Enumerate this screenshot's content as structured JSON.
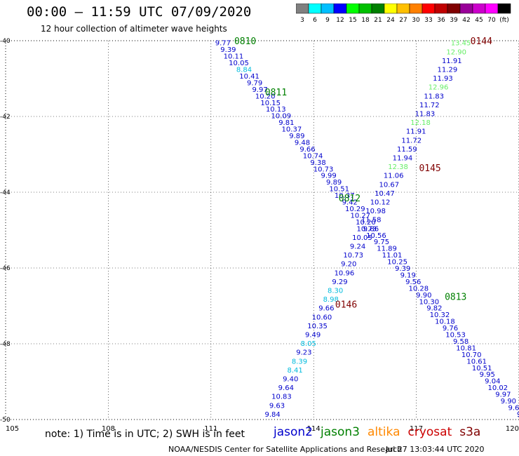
{
  "title": "00:00 – 11:59 UTC 07/09/2020",
  "subtitle": "12 hour collection of altimeter wave heights",
  "colorbar": {
    "colors": [
      "#808080",
      "#00ffff",
      "#00bfff",
      "#0000ff",
      "#00ff00",
      "#00c000",
      "#008000",
      "#ffff00",
      "#ffc000",
      "#ff8000",
      "#ff0000",
      "#c00000",
      "#800000",
      "#990099",
      "#cc00cc",
      "#ff00ff",
      "#000000"
    ],
    "labels": [
      "3",
      "6",
      "9",
      "12",
      "15",
      "18",
      "21",
      "24",
      "27",
      "30",
      "33",
      "36",
      "39",
      "42",
      "45",
      "70",
      "(ft)"
    ]
  },
  "note": "note: 1) Time is in UTC; 2) SWH is in feet",
  "satellites": [
    {
      "name": "jason2",
      "color": "#0000cc"
    },
    {
      "name": "jason3",
      "color": "#008000"
    },
    {
      "name": "altika",
      "color": "#ff8800"
    },
    {
      "name": "cryosat",
      "color": "#cc0000"
    },
    {
      "name": "s3a",
      "color": "#800000"
    }
  ],
  "footer_left": "NOAA/NESDIS Center for Satellite Applications and Research",
  "footer_right": "Jul 27 13:03:44 UTC 2020",
  "chart_data": {
    "type": "scatter",
    "title": "00:00 – 11:59 UTC 07/09/2020",
    "xlabel": "",
    "ylabel": "",
    "xlim": [
      105,
      120
    ],
    "ylim": [
      -50,
      -40
    ],
    "x_ticks": [
      "105",
      "108",
      "111",
      "114",
      "117",
      "120"
    ],
    "y_ticks": [
      "-40",
      "-42",
      "-44",
      "-46",
      "-48",
      "-50"
    ],
    "grid": true,
    "tracks": [
      {
        "id": "descending",
        "x_start": 111.35,
        "y_start": -40.05,
        "x_end": 120.0,
        "y_end": -49.85,
        "values": [
          "9.77",
          "9.39",
          "10.11",
          "10.05",
          "8.84",
          "10.41",
          "9.79",
          "9.97",
          "10.20",
          "10.15",
          "10.13",
          "10.09",
          "9.81",
          "10.37",
          "9.89",
          "9.48",
          "9.66",
          "10.74",
          "9.38",
          "10.73",
          "9.99",
          "9.89",
          "10.51",
          "10.37",
          "9.42",
          "10.29",
          "10.27",
          "10.20",
          "9.86",
          "10.56",
          "9.75",
          "11.89",
          "11.01",
          "10.25",
          "9.39",
          "9.19",
          "9.56",
          "10.28",
          "9.90",
          "10.30",
          "9.82",
          "10.32",
          "10.18",
          "9.76",
          "10.53",
          "9.58",
          "10.81",
          "10.70",
          "10.61",
          "10.51",
          "9.95",
          "9.04",
          "10.02",
          "9.97",
          "9.90",
          "9.6",
          "9"
        ]
      },
      {
        "id": "ascending",
        "x_start": 118.3,
        "y_start": -40.05,
        "x_end": 112.8,
        "y_end": -49.85,
        "values": [
          "13.45",
          "12.90",
          "11.91",
          "11.29",
          "11.93",
          "12.96",
          "11.83",
          "11.72",
          "11.83",
          "12.18",
          "11.91",
          "11.72",
          "11.59",
          "11.94",
          "12.38",
          "11.06",
          "10.67",
          "10.47",
          "10.12",
          "10.98",
          "11.58",
          "10.73",
          "10.05",
          "9.24",
          "10.73",
          "9.20",
          "10.96",
          "9.29",
          "8.30",
          "8.98",
          "9.66",
          "10.60",
          "10.35",
          "9.49",
          "8.05",
          "9.23",
          "8.39",
          "8.41",
          "9.40",
          "9.64",
          "10.83",
          "9.63",
          "9.84"
        ]
      }
    ],
    "pass_labels": [
      {
        "text": "0810",
        "x": 112.0,
        "y": -40.0,
        "color": "#008000"
      },
      {
        "text": "0144",
        "x": 118.9,
        "y": -40.0,
        "color": "#800000"
      },
      {
        "text": "0811",
        "x": 112.9,
        "y": -41.35,
        "color": "#008000"
      },
      {
        "text": "0145",
        "x": 117.4,
        "y": -43.35,
        "color": "#800000"
      },
      {
        "text": "0812",
        "x": 115.05,
        "y": -44.15,
        "color": "#008000"
      },
      {
        "text": "0146",
        "x": 114.95,
        "y": -46.95,
        "color": "#800000"
      },
      {
        "text": "0813",
        "x": 118.15,
        "y": -46.75,
        "color": "#008000"
      }
    ]
  }
}
